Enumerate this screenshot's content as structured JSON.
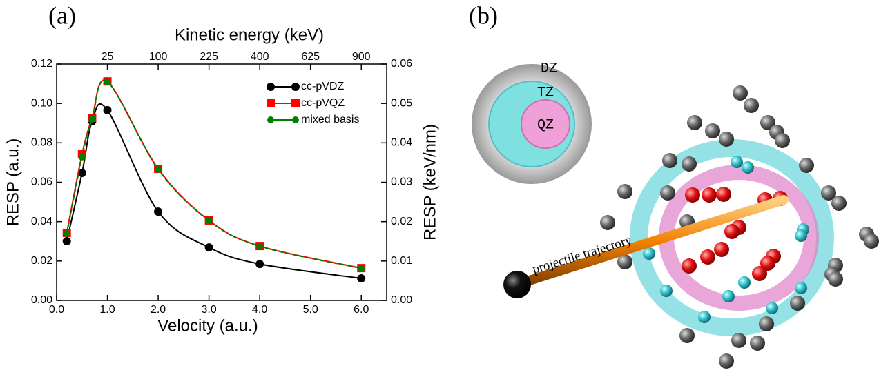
{
  "panel_labels": [
    "(a)",
    "(b)"
  ],
  "chart_data": {
    "type": "line",
    "xlabel": "Velocity (a.u.)",
    "ylabel": "RESP (a.u.)",
    "y2label": "RESP (keV/nm)",
    "x2label": "Kinetic energy (keV)",
    "x": [
      0.2,
      0.5,
      0.7,
      1.0,
      2.0,
      3.0,
      4.0,
      6.0
    ],
    "series": [
      {
        "name": "cc-pVDZ",
        "color": "#000000",
        "marker": "circle",
        "values": [
          0.0301,
          0.0647,
          0.091,
          0.0966,
          0.0451,
          0.0269,
          0.0185,
          0.0112
        ]
      },
      {
        "name": "cc-pVQZ",
        "color": "#ff0000",
        "marker": "square",
        "values": [
          0.0343,
          0.0742,
          0.0927,
          0.1112,
          0.0668,
          0.0406,
          0.0276,
          0.0164
        ]
      },
      {
        "name": "mixed basis",
        "color": "#008000",
        "marker": "circle",
        "dashed": true,
        "values": [
          0.034,
          0.0728,
          0.092,
          0.111,
          0.0665,
          0.0405,
          0.0275,
          0.0163
        ]
      }
    ],
    "xlim": [
      0,
      6.5
    ],
    "xticks": [
      {
        "value": 0,
        "label": "0.0"
      },
      {
        "value": 1,
        "label": "1.0"
      },
      {
        "value": 2,
        "label": "2.0"
      },
      {
        "value": 3,
        "label": "3.0"
      },
      {
        "value": 4,
        "label": "4.0"
      },
      {
        "value": 5,
        "label": "5.0"
      },
      {
        "value": 6,
        "label": "6.0"
      }
    ],
    "ylim": [
      0,
      0.12
    ],
    "yticks": [
      {
        "value": 0,
        "label": "0.00"
      },
      {
        "value": 0.02,
        "label": "0.02"
      },
      {
        "value": 0.04,
        "label": "0.04"
      },
      {
        "value": 0.06,
        "label": "0.06"
      },
      {
        "value": 0.08,
        "label": "0.08"
      },
      {
        "value": 0.1,
        "label": "0.10"
      },
      {
        "value": 0.12,
        "label": "0.12"
      }
    ],
    "y2lim": [
      0,
      0.06
    ],
    "y2ticks": [
      {
        "value": 0,
        "label": "0.00"
      },
      {
        "value": 0.01,
        "label": "0.01"
      },
      {
        "value": 0.02,
        "label": "0.02"
      },
      {
        "value": 0.03,
        "label": "0.03"
      },
      {
        "value": 0.04,
        "label": "0.04"
      },
      {
        "value": 0.05,
        "label": "0.05"
      },
      {
        "value": 0.06,
        "label": "0.06"
      }
    ],
    "x2ticks": [
      25,
      100,
      225,
      400,
      625,
      900
    ],
    "x2_per_velocity_squared": 25,
    "legend": "upper right"
  },
  "illustration": {
    "shells": [
      "DZ",
      "TZ",
      "QZ"
    ],
    "trajectory_label": "projectile trajectory"
  }
}
